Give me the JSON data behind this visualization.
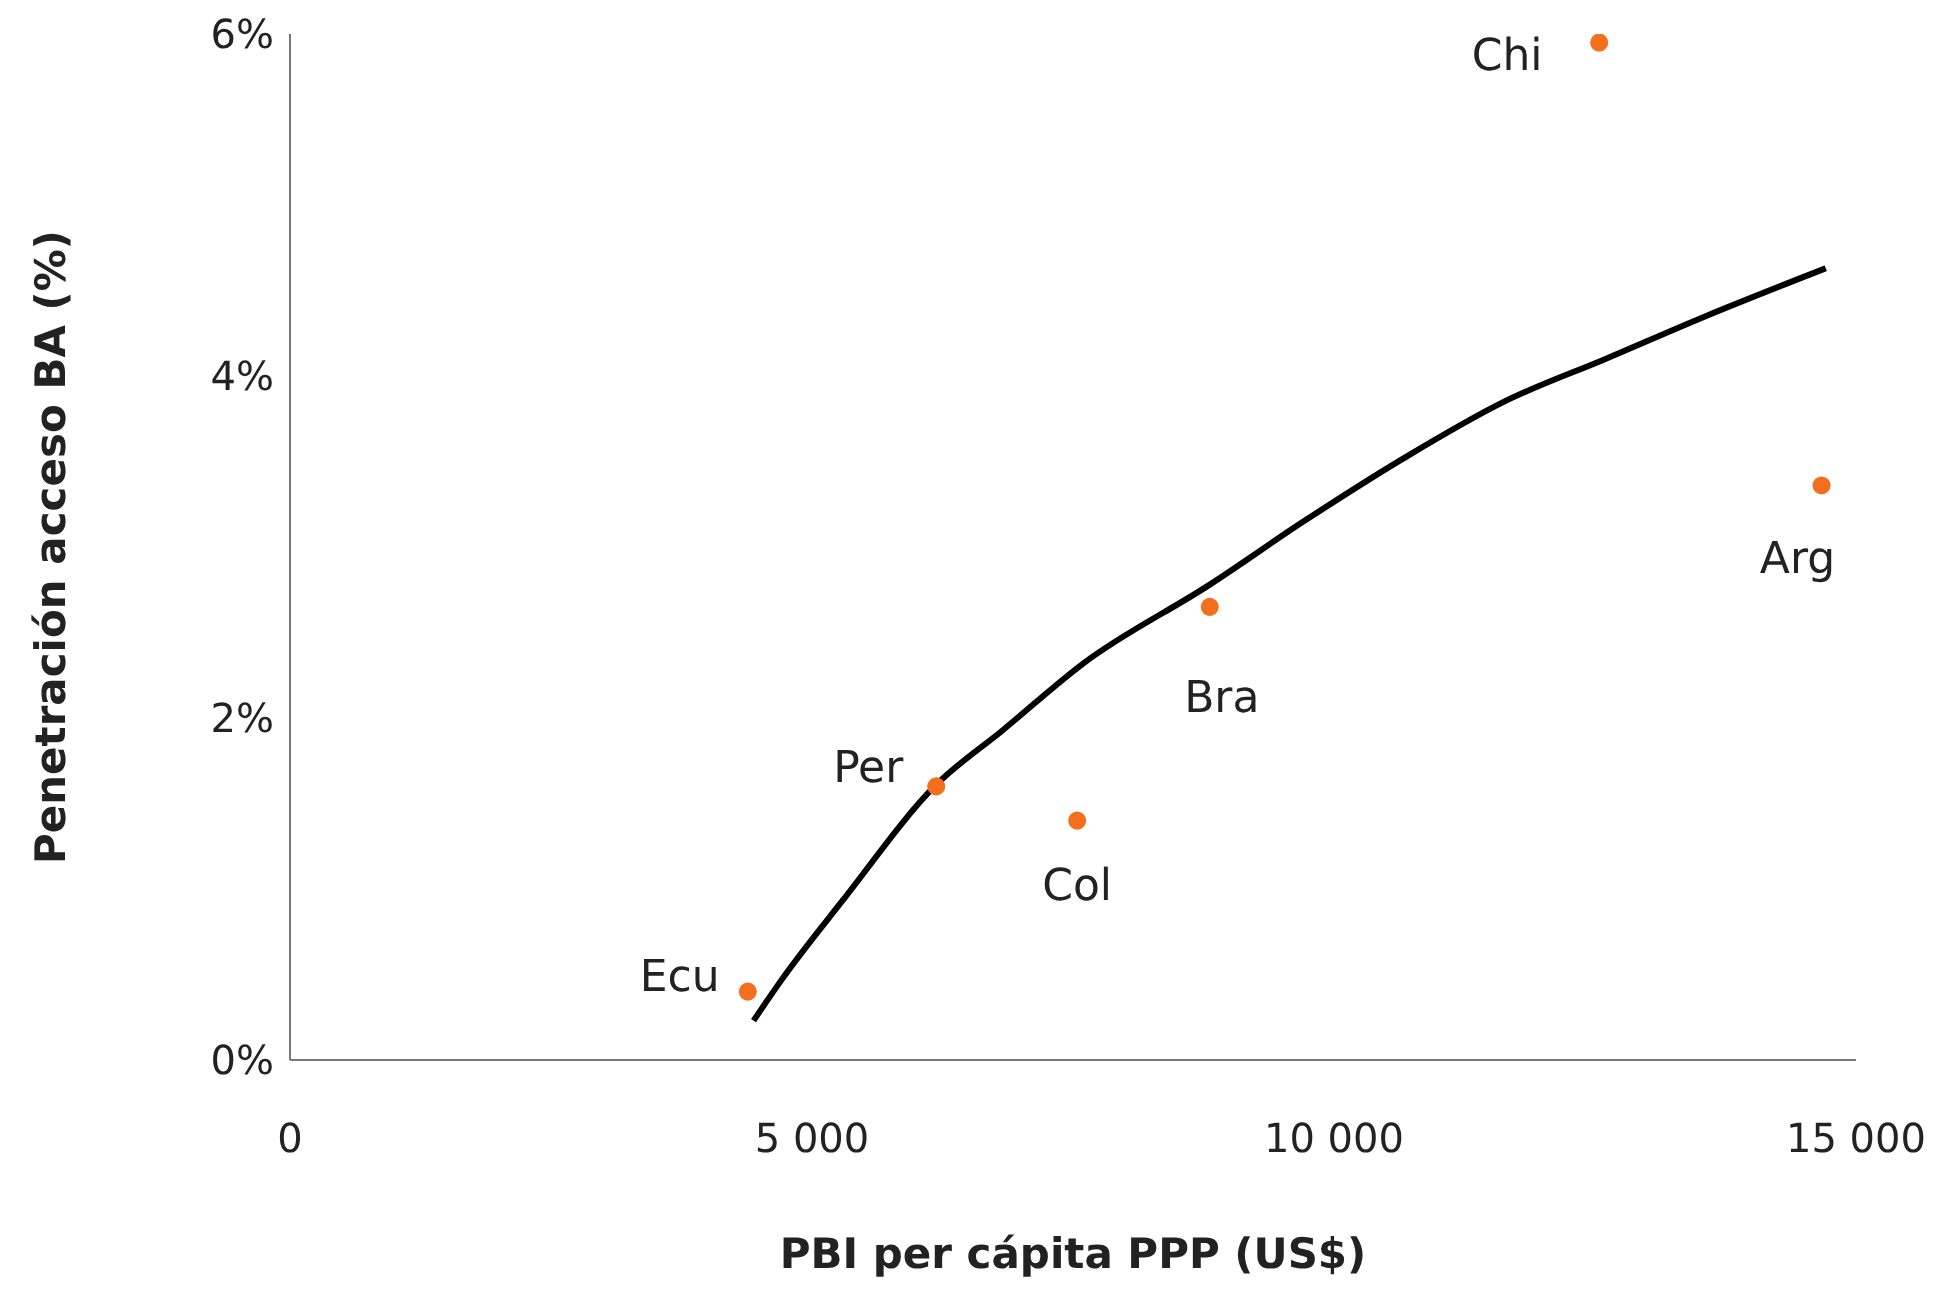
{
  "chart_data": {
    "type": "scatter",
    "xlabel": "PBI per cápita PPP (US$)",
    "ylabel": "Penetración acceso BA (%)",
    "xlim": [
      0,
      15000
    ],
    "xticks": [
      0,
      {
        "value": 5000,
        "label": "5 000"
      },
      {
        "value": 10000,
        "label": "10 000"
      },
      {
        "value": 15000,
        "label": "15 000"
      }
    ],
    "ylim": [
      0,
      6
    ],
    "yticks": [
      {
        "value": 0,
        "label": "0%"
      },
      {
        "value": 2,
        "label": "2%"
      },
      {
        "value": 4,
        "label": "4%"
      },
      {
        "value": 6,
        "label": "6%"
      }
    ],
    "grid": false,
    "marker": "circle",
    "series": [
      {
        "color": "#f26f1e",
        "x": [
          4385,
          6190,
          7540,
          8810,
          12540,
          14670
        ],
        "values": [
          0.4,
          1.6,
          1.4,
          2.65,
          5.95,
          3.36
        ]
      },
      {
        "type": "line",
        "color": "#000000",
        "line_style": "solid",
        "marker": "none",
        "x": [
          4440,
          4710,
          5290,
          6190,
          6830,
          7600,
          8810,
          9710,
          10670,
          11630,
          12600,
          13560,
          14710
        ],
        "values": [
          0.23,
          0.47,
          0.93,
          1.61,
          1.93,
          2.32,
          2.78,
          3.15,
          3.52,
          3.85,
          4.1,
          4.35,
          4.63
        ]
      }
    ],
    "annotations": [
      {
        "text": "Ecu",
        "x": 4385,
        "y": 0.4
      },
      {
        "text": "Per",
        "x": 6190,
        "y": 1.6
      },
      {
        "text": "Col",
        "x": 7540,
        "y": 1.4
      },
      {
        "text": "Bra",
        "x": 8810,
        "y": 2.65
      },
      {
        "text": "Chi",
        "x": 12540,
        "y": 5.95
      },
      {
        "text": "Arg",
        "x": 14670,
        "y": 3.36
      }
    ]
  }
}
